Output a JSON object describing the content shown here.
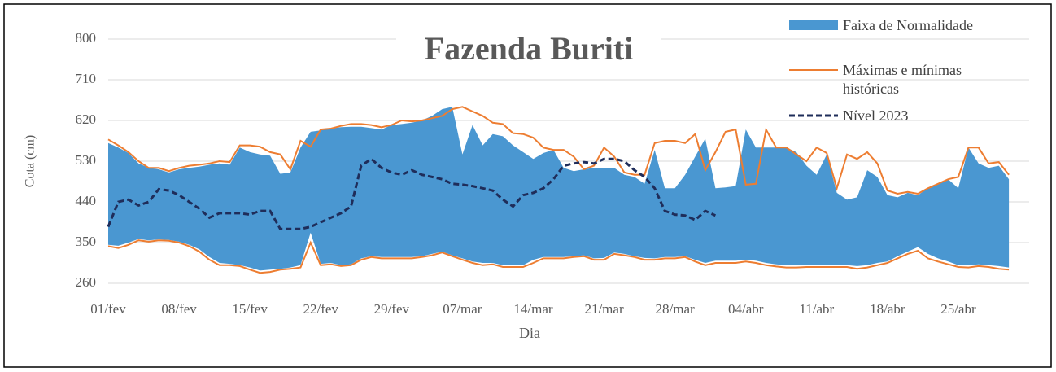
{
  "chart_data": {
    "type": "line",
    "title": "Fazenda Buriti",
    "x_label": "Dia",
    "y_label": "Cota (cm)",
    "ylim": [
      260,
      800
    ],
    "yticks": [
      260,
      350,
      440,
      530,
      620,
      710,
      800
    ],
    "grid": true,
    "legend": "top-right",
    "categories": [
      "01/fev",
      null,
      null,
      null,
      null,
      null,
      null,
      "08/fev",
      null,
      null,
      null,
      null,
      null,
      null,
      "15/fev",
      null,
      null,
      null,
      null,
      null,
      null,
      "22/fev",
      null,
      null,
      null,
      null,
      null,
      null,
      "29/fev",
      null,
      null,
      null,
      null,
      null,
      null,
      "07/mar",
      null,
      null,
      null,
      null,
      null,
      null,
      "14/mar",
      null,
      null,
      null,
      null,
      null,
      null,
      "21/mar",
      null,
      null,
      null,
      null,
      null,
      null,
      "28/mar",
      null,
      null,
      null,
      null,
      null,
      null,
      "04/abr",
      null,
      null,
      null,
      null,
      null,
      null,
      "11/abr",
      null,
      null,
      null,
      null,
      null,
      null,
      "18/abr",
      null,
      null,
      null,
      null,
      null,
      null,
      "25/abr",
      null,
      null,
      null,
      null,
      null
    ],
    "series": [
      {
        "name": "Faixa de Normalidade",
        "color": "#4a97d1",
        "style": "band",
        "values": [
          570,
          560,
          548,
          525,
          515,
          512,
          505,
          512,
          515,
          518,
          522,
          525,
          522,
          560,
          550,
          545,
          542,
          502,
          505,
          560,
          595,
          598,
          602,
          605,
          606,
          606,
          603,
          600,
          610,
          612,
          615,
          620,
          630,
          645,
          650,
          545,
          610,
          565,
          590,
          585,
          565,
          550,
          535,
          548,
          555,
          515,
          508,
          512,
          515,
          515,
          515,
          500,
          495,
          480,
          555,
          470,
          470,
          500,
          540,
          580,
          470,
          472,
          475,
          600,
          560,
          560,
          560,
          560,
          550,
          520,
          500,
          545,
          460,
          445,
          450,
          510,
          495,
          455,
          450,
          460,
          455,
          470,
          480,
          490,
          470,
          560,
          525,
          515,
          520,
          490
        ],
        "lower": [
          345,
          343,
          350,
          358,
          355,
          357,
          356,
          352,
          345,
          335,
          318,
          305,
          303,
          300,
          295,
          288,
          290,
          292,
          295,
          300,
          372,
          303,
          305,
          300,
          302,
          315,
          320,
          318,
          318,
          318,
          318,
          320,
          325,
          330,
          322,
          315,
          308,
          305,
          305,
          300,
          300,
          300,
          312,
          318,
          318,
          318,
          320,
          322,
          315,
          316,
          328,
          325,
          320,
          316,
          315,
          318,
          318,
          320,
          312,
          305,
          310,
          310,
          310,
          312,
          310,
          305,
          302,
          300,
          300,
          300,
          300,
          300,
          300,
          300,
          298,
          300,
          305,
          308,
          320,
          330,
          340,
          325,
          315,
          308,
          300,
          300,
          302,
          300,
          298,
          295
        ]
      },
      {
        "name": "Máximas e mínimas históricas",
        "color": "#ed7d31",
        "style": "minmax",
        "values": [
          578,
          565,
          550,
          530,
          515,
          515,
          508,
          515,
          520,
          522,
          525,
          530,
          528,
          565,
          565,
          562,
          550,
          545,
          512,
          575,
          562,
          600,
          602,
          608,
          612,
          612,
          610,
          605,
          610,
          620,
          618,
          620,
          625,
          630,
          645,
          650,
          640,
          630,
          615,
          612,
          592,
          590,
          582,
          560,
          555,
          555,
          540,
          512,
          520,
          560,
          540,
          505,
          500,
          500,
          570,
          575,
          575,
          570,
          590,
          510,
          550,
          595,
          600,
          478,
          480,
          600,
          560,
          560,
          545,
          530,
          560,
          548,
          470,
          545,
          535,
          550,
          525,
          465,
          458,
          462,
          458,
          470,
          480,
          490,
          495,
          560,
          560,
          525,
          528,
          500
        ],
        "lower": [
          342,
          338,
          345,
          355,
          352,
          355,
          354,
          350,
          342,
          330,
          312,
          300,
          300,
          298,
          290,
          283,
          285,
          290,
          292,
          295,
          350,
          300,
          302,
          298,
          300,
          312,
          318,
          315,
          315,
          315,
          315,
          318,
          322,
          328,
          320,
          312,
          305,
          300,
          302,
          296,
          296,
          296,
          305,
          315,
          315,
          315,
          318,
          320,
          312,
          312,
          325,
          322,
          318,
          312,
          312,
          315,
          315,
          318,
          308,
          300,
          305,
          305,
          305,
          308,
          305,
          300,
          297,
          295,
          295,
          296,
          296,
          296,
          296,
          296,
          292,
          295,
          300,
          305,
          315,
          325,
          332,
          315,
          308,
          302,
          296,
          295,
          298,
          296,
          292,
          290
        ]
      },
      {
        "name": "Nível 2023",
        "color": "#1f2d5a",
        "style": "dashed",
        "values": [
          385,
          440,
          445,
          432,
          440,
          468,
          465,
          455,
          440,
          425,
          405,
          415,
          415,
          415,
          412,
          420,
          420,
          380,
          380,
          380,
          385,
          395,
          405,
          415,
          430,
          520,
          535,
          515,
          505,
          500,
          510,
          500,
          495,
          490,
          480,
          478,
          475,
          470,
          465,
          445,
          430,
          455,
          460,
          470,
          490,
          520,
          525,
          528,
          525,
          535,
          535,
          530,
          510,
          495,
          470,
          420,
          412,
          410,
          400,
          420,
          410,
          null,
          null,
          null,
          null,
          null,
          null,
          null,
          null,
          null,
          null,
          null,
          null,
          null,
          null,
          null,
          null,
          null,
          null,
          null,
          null,
          null,
          null,
          null,
          null,
          null,
          null,
          null,
          null,
          null
        ]
      }
    ]
  }
}
